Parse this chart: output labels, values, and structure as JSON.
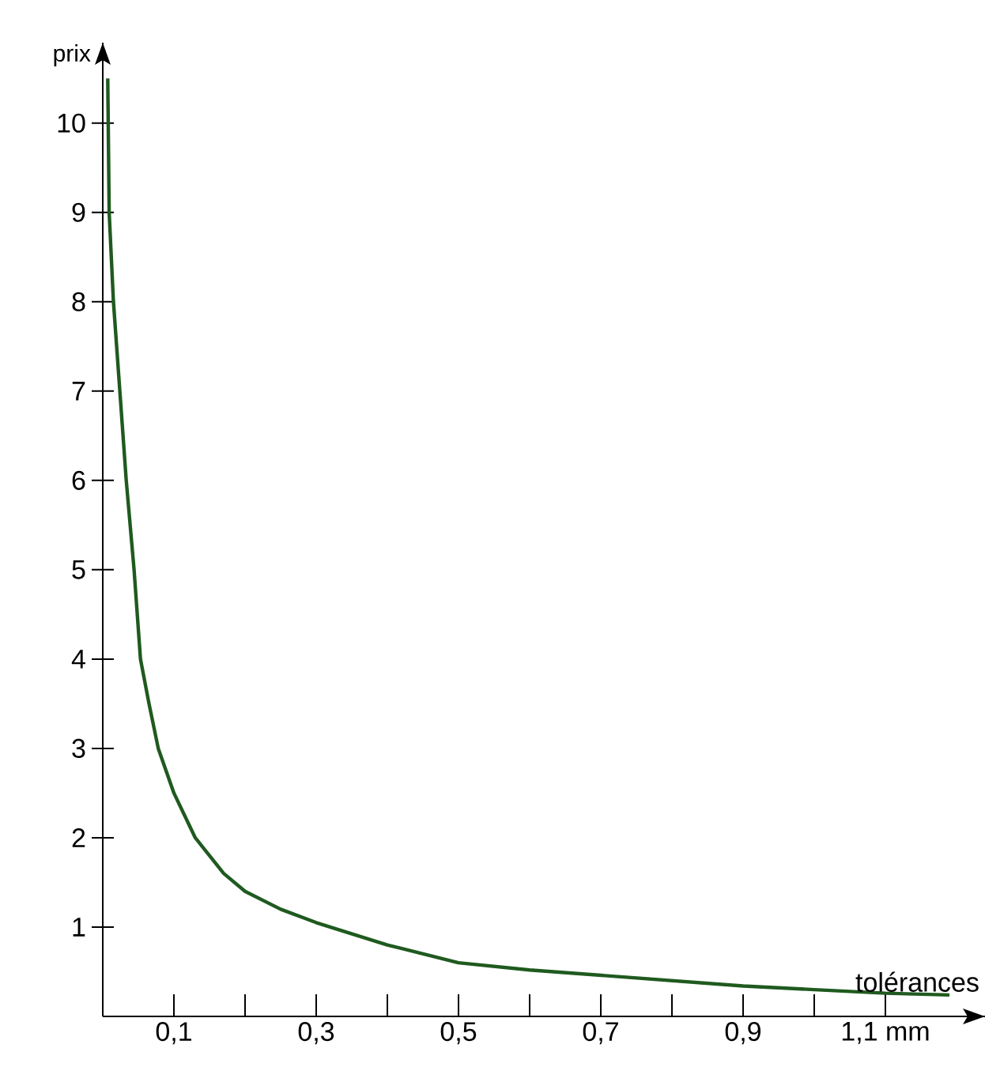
{
  "chart_data": {
    "type": "line",
    "xlabel": "tolérances",
    "ylabel": "prix",
    "x": [
      0.007,
      0.009,
      0.015,
      0.024,
      0.033,
      0.044,
      0.053,
      0.065,
      0.078,
      0.1,
      0.13,
      0.17,
      0.2,
      0.25,
      0.3,
      0.4,
      0.5,
      0.6,
      0.7,
      0.8,
      0.9,
      1.0,
      1.1,
      1.19
    ],
    "series": [
      {
        "color": "#1f5a1f",
        "values": [
          10.5,
          9,
          8,
          7,
          6,
          5,
          4,
          3.5,
          3,
          2.5,
          2,
          1.6,
          1.4,
          1.2,
          1.05,
          0.8,
          0.6,
          0.52,
          0.46,
          0.4,
          0.34,
          0.3,
          0.26,
          0.24
        ]
      }
    ],
    "xlim": [
      0,
      1.24
    ],
    "ylim": [
      0,
      10.9
    ],
    "xticks": [
      {
        "value": 0.1,
        "label": "0,1"
      },
      {
        "value": 0.2,
        "label": null
      },
      {
        "value": 0.3,
        "label": "0,3"
      },
      {
        "value": 0.4,
        "label": null
      },
      {
        "value": 0.5,
        "label": "0,5"
      },
      {
        "value": 0.6,
        "label": null
      },
      {
        "value": 0.7,
        "label": "0,7"
      },
      {
        "value": 0.8,
        "label": null
      },
      {
        "value": 0.9,
        "label": "0,9"
      },
      {
        "value": 1.0,
        "label": null
      },
      {
        "value": 1.1,
        "label": "1,1 mm"
      }
    ],
    "yticks": [
      1,
      2,
      3,
      4,
      5,
      6,
      7,
      8,
      9,
      10
    ],
    "grid": false,
    "marker": "none",
    "line_style": "solid"
  }
}
